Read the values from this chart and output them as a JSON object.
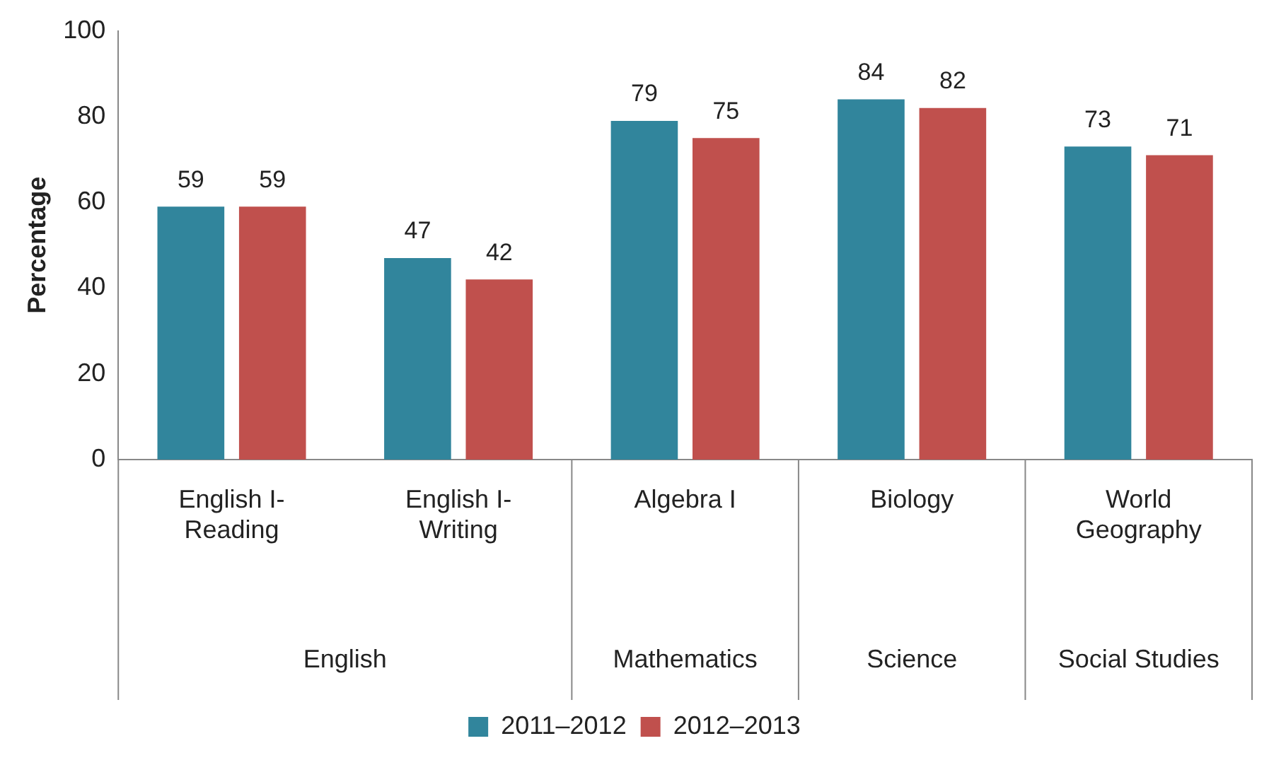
{
  "chart_data": {
    "type": "bar",
    "ylabel": "Percentage",
    "categories": [
      "English I-\nReading",
      "English I-\nWriting",
      "Algebra I",
      "Biology",
      "World\nGeography"
    ],
    "series": [
      {
        "name": "2011–2012",
        "color": "#31859c",
        "values": [
          59,
          47,
          79,
          84,
          73
        ]
      },
      {
        "name": "2012–2013",
        "color": "#c0504d",
        "values": [
          59,
          42,
          75,
          82,
          71
        ]
      }
    ],
    "ylim": [
      0,
      100
    ],
    "yticks": [
      0,
      20,
      40,
      60,
      80,
      100
    ],
    "grid": false,
    "legend": "bottom",
    "data_labels": true,
    "annotations": [
      "English",
      "Mathematics",
      "Science",
      "Social Studies"
    ]
  }
}
